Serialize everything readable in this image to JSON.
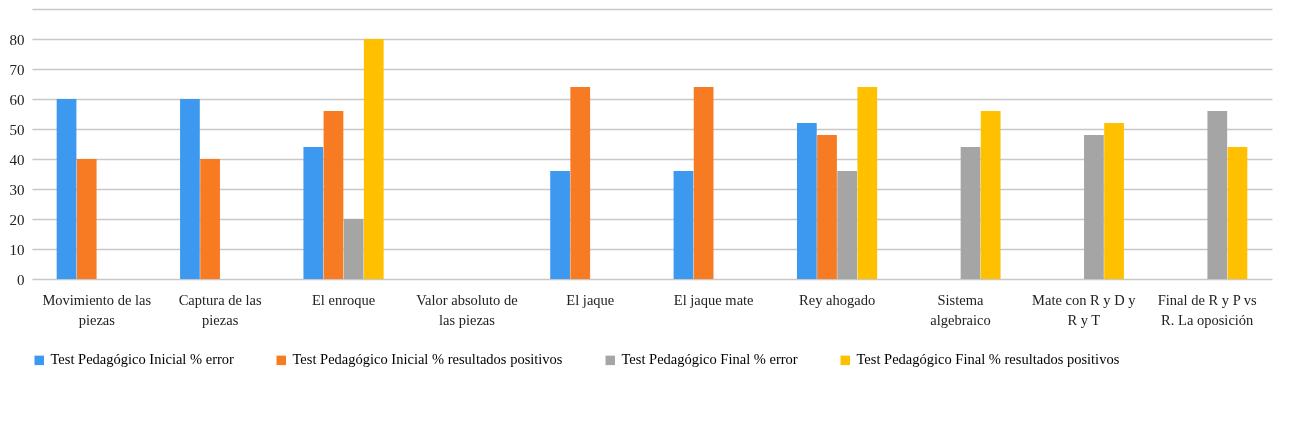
{
  "chart_data": {
    "type": "bar",
    "categories": [
      "Movimiento de las piezas",
      "Captura de las piezas",
      "El enroque",
      "Valor absoluto de las piezas",
      "El jaque",
      "El jaque mate",
      "Rey ahogado",
      "Sistema algebraico",
      "Mate con R y D y R y T",
      "Final de R y P vs R. La oposición"
    ],
    "series": [
      {
        "name": "Test Pedagógico Inicial % error",
        "color": "#3d99f0",
        "values": [
          60,
          60,
          44,
          0,
          36,
          36,
          52,
          0,
          0,
          0
        ]
      },
      {
        "name": "Test Pedagógico Inicial % resultados positivos",
        "color": "#f77b22",
        "values": [
          40,
          40,
          56,
          0,
          64,
          64,
          48,
          0,
          0,
          0
        ]
      },
      {
        "name": "Test Pedagógico Final % error",
        "color": "#a5a5a5",
        "values": [
          0,
          0,
          20,
          0,
          0,
          0,
          36,
          44,
          48,
          56
        ]
      },
      {
        "name": "Test Pedagógico Final % resultados positivos",
        "color": "#ffc000",
        "values": [
          0,
          0,
          80,
          0,
          0,
          0,
          64,
          56,
          52,
          44
        ]
      }
    ],
    "ylim": [
      0,
      90
    ],
    "yticks": [
      0,
      10,
      20,
      30,
      40,
      50,
      60,
      70,
      80,
      {
        "value": 90,
        "label": null
      }
    ],
    "grid": "y",
    "legend": "bottom"
  }
}
